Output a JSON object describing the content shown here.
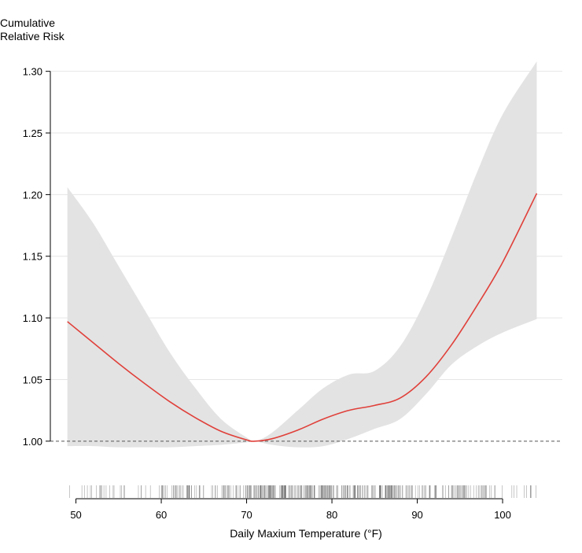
{
  "chart_data": {
    "type": "line",
    "title": "",
    "ylabel_line1": "Cumulative",
    "ylabel_line2": "Relative Risk",
    "xlabel": "Daily Maxium Temperature (°F)",
    "xlim": [
      47,
      107
    ],
    "ylim": [
      0.975,
      1.31
    ],
    "x_ticks": [
      50,
      60,
      70,
      80,
      90,
      100
    ],
    "x_tick_labels": [
      "50",
      "60",
      "70",
      "80",
      "90",
      "100"
    ],
    "y_ticks": [
      1.0,
      1.05,
      1.1,
      1.15,
      1.2,
      1.25,
      1.3
    ],
    "y_tick_labels": [
      "1.00",
      "1.05",
      "1.10",
      "1.15",
      "1.20",
      "1.25",
      "1.30"
    ],
    "grid": "horizontal",
    "reference_line": 1.0,
    "colors": {
      "line": "#e0403a",
      "band": "#e3e3e3",
      "grid": "#e6e6e6",
      "rug": "#555555"
    },
    "series": [
      {
        "x": [
          49,
          52,
          55,
          58,
          61,
          64,
          67,
          70,
          71,
          73,
          76,
          79,
          82,
          85,
          88,
          91,
          94,
          97,
          100,
          104
        ],
        "values": [
          1.097,
          1.08,
          1.063,
          1.047,
          1.032,
          1.019,
          1.008,
          1.001,
          1.0,
          1.002,
          1.009,
          1.018,
          1.025,
          1.029,
          1.035,
          1.052,
          1.078,
          1.11,
          1.145,
          1.201
        ],
        "lower": [
          0.996,
          0.996,
          0.995,
          0.995,
          0.995,
          0.996,
          0.997,
          0.999,
          1.0,
          0.997,
          0.995,
          0.996,
          1.002,
          1.01,
          1.018,
          1.038,
          1.062,
          1.077,
          1.088,
          1.099
        ],
        "upper": [
          1.206,
          1.177,
          1.142,
          1.107,
          1.072,
          1.043,
          1.018,
          1.003,
          1.0,
          1.007,
          1.025,
          1.043,
          1.054,
          1.057,
          1.077,
          1.115,
          1.165,
          1.218,
          1.265,
          1.308
        ]
      }
    ]
  }
}
